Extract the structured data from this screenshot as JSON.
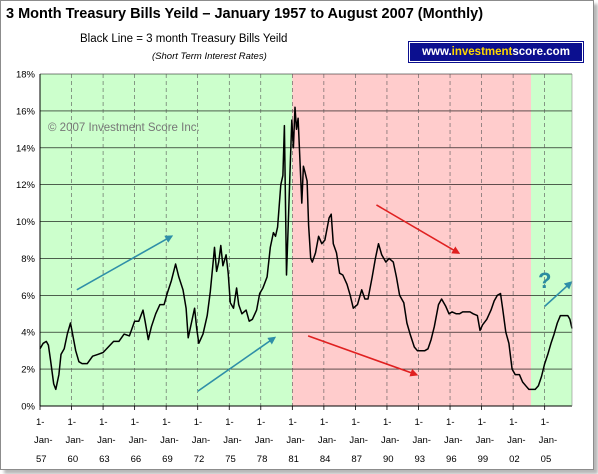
{
  "header": {
    "title": "3 Month Treasury Bills Yeild – January 1957 to August 2007 (Monthly)",
    "subtitle": "Black Line = 3 month Treasury Bills Yeild",
    "subtitle2": "(Short Term Interest Rates)",
    "badge_pre": "www.",
    "badge_hi": "investment",
    "badge_post": "score.com"
  },
  "watermark": "© 2007 Investment Score Inc.",
  "question_mark": "?",
  "colors": {
    "green_zone": "#ccffcc",
    "red_zone": "#ffcccc",
    "line": "#000000",
    "arrow_teal": "#2f8fa8",
    "arrow_red": "#e02020",
    "badge_bg": "#0b0f8f"
  },
  "chart_data": {
    "type": "line",
    "title": "3 Month Treasury Bills Yeild – January 1957 to August 2007 (Monthly)",
    "ylim": [
      0,
      18
    ],
    "yticks": [
      "0%",
      "2%",
      "4%",
      "6%",
      "8%",
      "10%",
      "12%",
      "14%",
      "16%",
      "18%"
    ],
    "xlim": [
      1957,
      2007.6
    ],
    "xticks": [
      {
        "year": 1957,
        "top": "1-",
        "bottom": "Jan-",
        "yy": "57"
      },
      {
        "year": 1960,
        "top": "1-",
        "bottom": "Jan-",
        "yy": "60"
      },
      {
        "year": 1963,
        "top": "1-",
        "bottom": "Jan-",
        "yy": "63"
      },
      {
        "year": 1966,
        "top": "1-",
        "bottom": "Jan-",
        "yy": "66"
      },
      {
        "year": 1969,
        "top": "1-",
        "bottom": "Jan-",
        "yy": "69"
      },
      {
        "year": 1972,
        "top": "1-",
        "bottom": "Jan-",
        "yy": "72"
      },
      {
        "year": 1975,
        "top": "1-",
        "bottom": "Jan-",
        "yy": "75"
      },
      {
        "year": 1978,
        "top": "1-",
        "bottom": "Jan-",
        "yy": "78"
      },
      {
        "year": 1981,
        "top": "1-",
        "bottom": "Jan-",
        "yy": "81"
      },
      {
        "year": 1984,
        "top": "1-",
        "bottom": "Jan-",
        "yy": "84"
      },
      {
        "year": 1987,
        "top": "1-",
        "bottom": "Jan-",
        "yy": "87"
      },
      {
        "year": 1990,
        "top": "1-",
        "bottom": "Jan-",
        "yy": "90"
      },
      {
        "year": 1993,
        "top": "1-",
        "bottom": "Jan-",
        "yy": "93"
      },
      {
        "year": 1996,
        "top": "1-",
        "bottom": "Jan-",
        "yy": "96"
      },
      {
        "year": 1999,
        "top": "1-",
        "bottom": "Jan-",
        "yy": "99"
      },
      {
        "year": 2002,
        "top": "1-",
        "bottom": "Jan-",
        "yy": "02"
      },
      {
        "year": 2005,
        "top": "1-",
        "bottom": "Jan-",
        "yy": "05"
      }
    ],
    "grid": true,
    "zones": [
      {
        "name": "green",
        "from": 1957,
        "to": 1981.0
      },
      {
        "name": "red",
        "from": 1981.0,
        "to": 2003.7
      },
      {
        "name": "green",
        "from": 2003.7,
        "to": 2007.6
      }
    ],
    "series": [
      {
        "name": "3 month Treasury Bills Yeild",
        "points": [
          [
            1957.0,
            3.1
          ],
          [
            1957.3,
            3.4
          ],
          [
            1957.6,
            3.5
          ],
          [
            1957.8,
            3.3
          ],
          [
            1958.0,
            2.5
          ],
          [
            1958.3,
            1.2
          ],
          [
            1958.5,
            0.9
          ],
          [
            1958.8,
            1.7
          ],
          [
            1959.0,
            2.8
          ],
          [
            1959.3,
            3.1
          ],
          [
            1959.6,
            3.9
          ],
          [
            1959.9,
            4.5
          ],
          [
            1960.1,
            3.9
          ],
          [
            1960.4,
            3.0
          ],
          [
            1960.7,
            2.4
          ],
          [
            1961.0,
            2.3
          ],
          [
            1961.5,
            2.3
          ],
          [
            1962.0,
            2.7
          ],
          [
            1962.5,
            2.8
          ],
          [
            1963.0,
            2.9
          ],
          [
            1963.5,
            3.2
          ],
          [
            1964.0,
            3.5
          ],
          [
            1964.5,
            3.5
          ],
          [
            1965.0,
            3.9
          ],
          [
            1965.5,
            3.8
          ],
          [
            1966.0,
            4.6
          ],
          [
            1966.4,
            4.6
          ],
          [
            1966.8,
            5.2
          ],
          [
            1967.0,
            4.6
          ],
          [
            1967.3,
            3.6
          ],
          [
            1967.6,
            4.3
          ],
          [
            1968.0,
            5.0
          ],
          [
            1968.4,
            5.5
          ],
          [
            1968.8,
            5.5
          ],
          [
            1969.1,
            6.1
          ],
          [
            1969.5,
            6.8
          ],
          [
            1969.9,
            7.7
          ],
          [
            1970.2,
            7.0
          ],
          [
            1970.6,
            6.3
          ],
          [
            1970.9,
            5.3
          ],
          [
            1971.1,
            3.7
          ],
          [
            1971.4,
            4.5
          ],
          [
            1971.7,
            5.3
          ],
          [
            1971.9,
            4.2
          ],
          [
            1972.1,
            3.4
          ],
          [
            1972.5,
            3.9
          ],
          [
            1972.9,
            4.9
          ],
          [
            1973.2,
            6.2
          ],
          [
            1973.5,
            8.0
          ],
          [
            1973.6,
            8.6
          ],
          [
            1973.8,
            7.3
          ],
          [
            1974.0,
            7.8
          ],
          [
            1974.2,
            8.7
          ],
          [
            1974.4,
            7.6
          ],
          [
            1974.7,
            8.2
          ],
          [
            1974.9,
            7.2
          ],
          [
            1975.1,
            5.6
          ],
          [
            1975.4,
            5.3
          ],
          [
            1975.7,
            6.4
          ],
          [
            1975.9,
            5.5
          ],
          [
            1976.2,
            5.0
          ],
          [
            1976.6,
            5.2
          ],
          [
            1976.9,
            4.6
          ],
          [
            1977.2,
            4.7
          ],
          [
            1977.6,
            5.2
          ],
          [
            1977.9,
            6.1
          ],
          [
            1978.2,
            6.4
          ],
          [
            1978.6,
            7.0
          ],
          [
            1978.9,
            8.6
          ],
          [
            1979.2,
            9.4
          ],
          [
            1979.4,
            9.2
          ],
          [
            1979.6,
            9.7
          ],
          [
            1979.9,
            12.0
          ],
          [
            1980.1,
            12.5
          ],
          [
            1980.25,
            15.2
          ],
          [
            1980.4,
            9.0
          ],
          [
            1980.45,
            7.1
          ],
          [
            1980.6,
            9.6
          ],
          [
            1980.8,
            13.0
          ],
          [
            1980.95,
            15.5
          ],
          [
            1981.1,
            14.0
          ],
          [
            1981.25,
            16.2
          ],
          [
            1981.4,
            15.0
          ],
          [
            1981.55,
            15.6
          ],
          [
            1981.75,
            13.0
          ],
          [
            1981.9,
            11.0
          ],
          [
            1982.05,
            13.0
          ],
          [
            1982.2,
            12.7
          ],
          [
            1982.4,
            12.2
          ],
          [
            1982.55,
            9.8
          ],
          [
            1982.75,
            8.0
          ],
          [
            1982.9,
            7.8
          ],
          [
            1983.2,
            8.3
          ],
          [
            1983.5,
            9.2
          ],
          [
            1983.8,
            8.8
          ],
          [
            1984.1,
            9.0
          ],
          [
            1984.5,
            10.2
          ],
          [
            1984.7,
            10.4
          ],
          [
            1984.9,
            8.8
          ],
          [
            1985.2,
            8.3
          ],
          [
            1985.5,
            7.2
          ],
          [
            1985.8,
            7.1
          ],
          [
            1986.2,
            6.6
          ],
          [
            1986.5,
            6.0
          ],
          [
            1986.8,
            5.3
          ],
          [
            1987.2,
            5.5
          ],
          [
            1987.6,
            6.3
          ],
          [
            1987.9,
            5.8
          ],
          [
            1988.2,
            5.8
          ],
          [
            1988.6,
            7.0
          ],
          [
            1988.9,
            8.0
          ],
          [
            1989.2,
            8.8
          ],
          [
            1989.5,
            8.2
          ],
          [
            1989.9,
            7.8
          ],
          [
            1990.2,
            8.0
          ],
          [
            1990.6,
            7.8
          ],
          [
            1990.9,
            7.0
          ],
          [
            1991.2,
            6.0
          ],
          [
            1991.6,
            5.6
          ],
          [
            1991.9,
            4.5
          ],
          [
            1992.2,
            3.9
          ],
          [
            1992.6,
            3.2
          ],
          [
            1992.9,
            3.0
          ],
          [
            1993.2,
            3.0
          ],
          [
            1993.6,
            3.0
          ],
          [
            1993.9,
            3.1
          ],
          [
            1994.2,
            3.6
          ],
          [
            1994.5,
            4.3
          ],
          [
            1994.9,
            5.5
          ],
          [
            1995.2,
            5.8
          ],
          [
            1995.6,
            5.4
          ],
          [
            1995.9,
            5.0
          ],
          [
            1996.2,
            5.1
          ],
          [
            1996.6,
            5.0
          ],
          [
            1996.9,
            5.0
          ],
          [
            1997.2,
            5.1
          ],
          [
            1997.6,
            5.1
          ],
          [
            1997.9,
            5.1
          ],
          [
            1998.2,
            5.0
          ],
          [
            1998.6,
            4.9
          ],
          [
            1998.85,
            4.1
          ],
          [
            1999.1,
            4.4
          ],
          [
            1999.5,
            4.7
          ],
          [
            1999.9,
            5.2
          ],
          [
            2000.2,
            5.7
          ],
          [
            2000.5,
            6.0
          ],
          [
            2000.8,
            6.1
          ],
          [
            2001.0,
            5.3
          ],
          [
            2001.3,
            4.0
          ],
          [
            2001.6,
            3.4
          ],
          [
            2001.9,
            2.0
          ],
          [
            2002.2,
            1.7
          ],
          [
            2002.6,
            1.7
          ],
          [
            2002.9,
            1.3
          ],
          [
            2003.2,
            1.1
          ],
          [
            2003.5,
            0.9
          ],
          [
            2003.8,
            0.9
          ],
          [
            2004.1,
            0.9
          ],
          [
            2004.4,
            1.1
          ],
          [
            2004.7,
            1.6
          ],
          [
            2005.0,
            2.3
          ],
          [
            2005.3,
            2.8
          ],
          [
            2005.6,
            3.4
          ],
          [
            2005.9,
            3.9
          ],
          [
            2006.2,
            4.5
          ],
          [
            2006.5,
            4.9
          ],
          [
            2006.9,
            4.9
          ],
          [
            2007.2,
            4.9
          ],
          [
            2007.4,
            4.7
          ],
          [
            2007.6,
            4.2
          ]
        ]
      }
    ],
    "annotations": [
      {
        "kind": "arrow",
        "color": "teal",
        "from": [
          1960.5,
          6.3
        ],
        "to": [
          1969.5,
          9.2
        ]
      },
      {
        "kind": "arrow",
        "color": "teal",
        "from": [
          1972.0,
          0.8
        ],
        "to": [
          1979.3,
          3.7
        ]
      },
      {
        "kind": "arrow",
        "color": "red",
        "from": [
          1982.5,
          3.8
        ],
        "to": [
          1992.8,
          1.7
        ]
      },
      {
        "kind": "arrow",
        "color": "red",
        "from": [
          1989.0,
          10.9
        ],
        "to": [
          1996.8,
          8.3
        ]
      },
      {
        "kind": "arrow",
        "color": "teal",
        "from": [
          2005.0,
          5.4
        ],
        "to": [
          2007.5,
          6.7
        ]
      }
    ]
  }
}
